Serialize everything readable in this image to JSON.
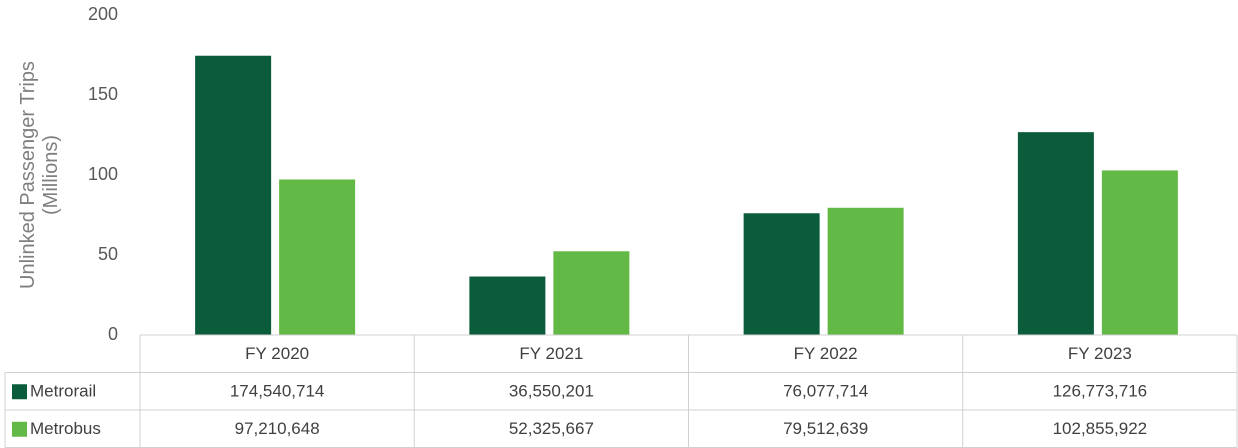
{
  "chart_data": {
    "type": "bar",
    "y_label": "Unlinked Passenger Trips (Millions)",
    "categories": [
      "FY 2020",
      "FY 2021",
      "FY 2022",
      "FY 2023"
    ],
    "series": [
      {
        "name": "Metrorail",
        "color": "#0a5c3b",
        "values": [
          174.540714,
          36.550201,
          76.077714,
          126.773716
        ],
        "value_labels": [
          "174,540,714",
          "36,550,201",
          "76,077,714",
          "126,773,716"
        ]
      },
      {
        "name": "Metrobus",
        "color": "#63b946",
        "values": [
          97.210648,
          52.325667,
          79.512639,
          102.855922
        ],
        "value_labels": [
          "97,210,648",
          "52,325,667",
          "79,512,639",
          "102,855,922"
        ]
      }
    ],
    "ylim": [
      0,
      200
    ],
    "yticks": [
      0,
      50,
      100,
      150,
      200
    ],
    "grid": false,
    "data_table": true
  }
}
